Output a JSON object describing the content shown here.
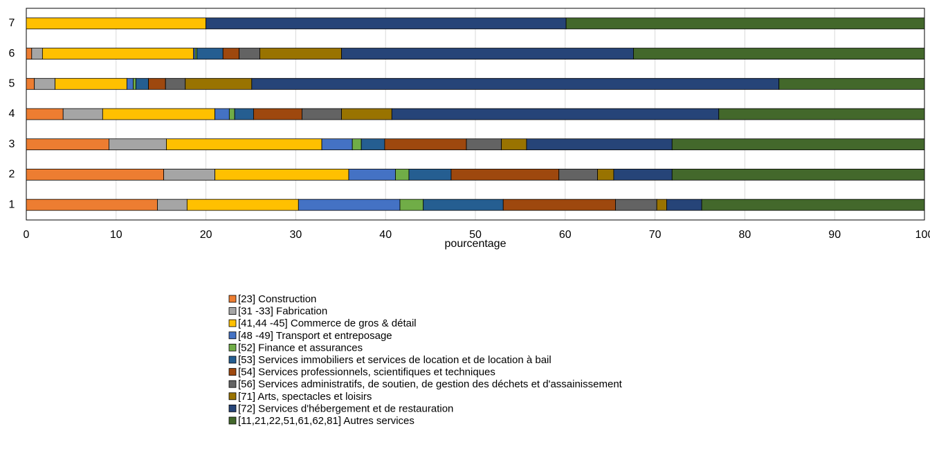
{
  "chart_data": {
    "type": "stacked-barh",
    "xlabel": "pourcentage",
    "categories": [
      "1",
      "2",
      "3",
      "4",
      "5",
      "6",
      "7"
    ],
    "xlim": [
      0,
      100
    ],
    "xticks": [
      0,
      10,
      20,
      30,
      40,
      50,
      60,
      70,
      80,
      90,
      100
    ],
    "grid": true,
    "series": [
      {
        "name": "[23] Construction",
        "color": "#ed7d31",
        "values": [
          14.6,
          15.3,
          9.2,
          4.1,
          0.9,
          0.6,
          0
        ]
      },
      {
        "name": "[31 -33] Fabrication",
        "color": "#a5a5a5",
        "values": [
          3.3,
          5.7,
          6.4,
          4.4,
          2.3,
          1.2,
          0
        ]
      },
      {
        "name": "[41,44 -45] Commerce de gros & détail",
        "color": "#ffc000",
        "values": [
          12.4,
          14.9,
          17.3,
          12.5,
          8.0,
          16.8,
          20.0
        ]
      },
      {
        "name": "[48 -49] Transport et entreposage",
        "color": "#4472c4",
        "values": [
          11.3,
          5.2,
          3.4,
          1.6,
          0.7,
          0.2,
          0
        ]
      },
      {
        "name": "[52] Finance et assurances",
        "color": "#70ad47",
        "values": [
          2.6,
          1.5,
          1.0,
          0.6,
          0.3,
          0.2,
          0
        ]
      },
      {
        "name": "[53] Services immobiliers et services de location et de location à bail",
        "color": "#255e91",
        "values": [
          8.9,
          4.7,
          2.6,
          2.1,
          1.4,
          2.9,
          0
        ]
      },
      {
        "name": "[54] Services professionnels, scientifiques et techniques",
        "color": "#9e480e",
        "values": [
          12.5,
          12.0,
          9.1,
          5.4,
          1.9,
          1.8,
          0
        ]
      },
      {
        "name": "[56] Services administratifs, de soutien, de gestion des déchets et d'assainissement",
        "color": "#636363",
        "values": [
          4.6,
          4.3,
          3.9,
          4.4,
          2.2,
          2.3,
          0
        ]
      },
      {
        "name": "[71] Arts, spectacles et loisirs",
        "color": "#997300",
        "values": [
          1.1,
          1.8,
          2.8,
          5.6,
          7.4,
          9.1,
          0
        ]
      },
      {
        "name": "[72] Services d'hébergement et de restauration",
        "color": "#264478",
        "values": [
          3.9,
          6.5,
          16.2,
          36.4,
          58.7,
          32.5,
          40.1
        ]
      },
      {
        "name": "[11,21,22,51,61,62,81] Autres services",
        "color": "#43682b",
        "values": [
          24.8,
          28.1,
          28.1,
          22.9,
          16.2,
          32.4,
          39.9
        ]
      }
    ]
  }
}
